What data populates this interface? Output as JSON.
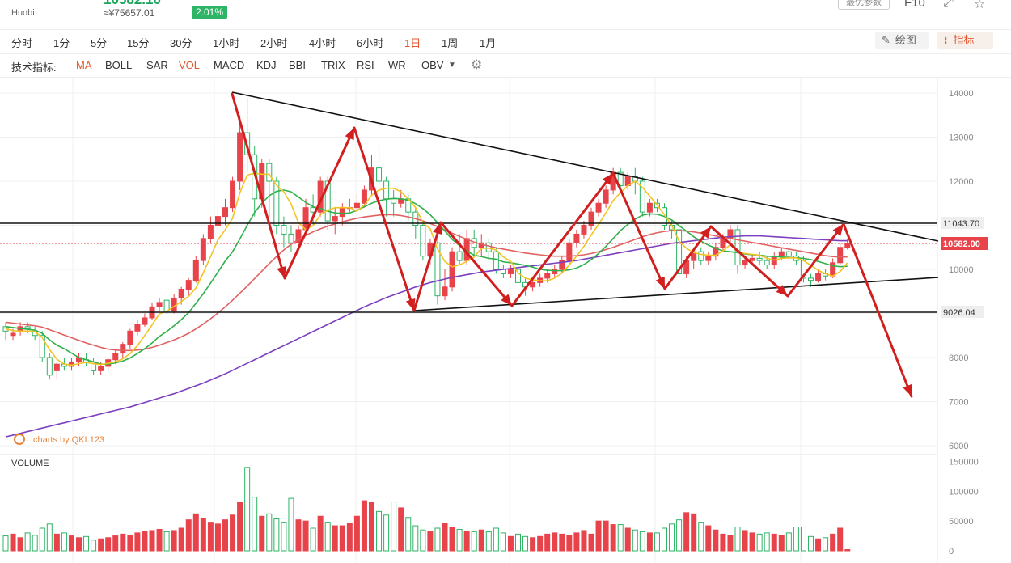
{
  "header": {
    "price_display": "10582.10",
    "exchange": "Huobi",
    "cny_price": "≈¥75657.01",
    "change_pct": "2.01%",
    "params_button": "最优参数",
    "f10": "F10"
  },
  "toolbar": {
    "timeframes": [
      "分时",
      "1分",
      "5分",
      "15分",
      "30分",
      "1小时",
      "2小时",
      "4小时",
      "6小时",
      "1日",
      "1周",
      "1月"
    ],
    "active_timeframe": "1日",
    "draw_button": "绘图",
    "indicator_button": "指标"
  },
  "indicators": {
    "label": "技术指标:",
    "items": [
      "MA",
      "BOLL",
      "SAR",
      "VOL",
      "MACD",
      "KDJ",
      "BBI",
      "TRIX",
      "RSI",
      "WR",
      "OBV"
    ],
    "active": [
      "MA",
      "VOL"
    ]
  },
  "price_axis": {
    "ticks": [
      "14000",
      "13000",
      "12000",
      "11000",
      "10000",
      "9000",
      "8000",
      "7000",
      "6000"
    ],
    "lines": {
      "resistance": "11043.70",
      "support": "9026.04",
      "current": "10582.00"
    }
  },
  "volume_axis": {
    "title": "VOLUME",
    "ticks": [
      "150000",
      "100000",
      "50000",
      "0"
    ]
  },
  "watermark": "charts by QKL123",
  "colors": {
    "up": "#e8434a",
    "down": "#2db464",
    "ma5": "#f3c322",
    "ma10": "#2fb04a",
    "ma20": "#e06262",
    "ma60": "#7b3fbf",
    "current_line": "#e8434a",
    "annotation": "#d11f1f"
  },
  "chart_data": {
    "type": "candlestick",
    "candles": [
      [
        8700,
        8600,
        8800,
        8400
      ],
      [
        8500,
        8550,
        8650,
        8400
      ],
      [
        8600,
        8700,
        8800,
        8500
      ],
      [
        8700,
        8650,
        8800,
        8550
      ],
      [
        8600,
        8500,
        8700,
        8400
      ],
      [
        8500,
        8000,
        8600,
        7900
      ],
      [
        8000,
        7600,
        8100,
        7500
      ],
      [
        7700,
        7850,
        7900,
        7500
      ],
      [
        7850,
        7800,
        8000,
        7700
      ],
      [
        7800,
        7900,
        8000,
        7700
      ],
      [
        7900,
        8000,
        8100,
        7800
      ],
      [
        7950,
        7900,
        8100,
        7800
      ],
      [
        7900,
        7700,
        8000,
        7600
      ],
      [
        7700,
        7800,
        7900,
        7600
      ],
      [
        7800,
        7950,
        8000,
        7700
      ],
      [
        7950,
        8100,
        8200,
        7850
      ],
      [
        8100,
        8300,
        8350,
        8000
      ],
      [
        8300,
        8600,
        8650,
        8200
      ],
      [
        8600,
        8750,
        8850,
        8500
      ],
      [
        8750,
        8900,
        9000,
        8700
      ],
      [
        8900,
        9150,
        9250,
        8850
      ],
      [
        9150,
        9250,
        9350,
        9050
      ],
      [
        9300,
        9050,
        9300,
        9000
      ],
      [
        9050,
        9350,
        9450,
        9000
      ],
      [
        9350,
        9550,
        9600,
        9200
      ],
      [
        9550,
        9750,
        9800,
        9400
      ],
      [
        9750,
        10200,
        10300,
        9700
      ],
      [
        10200,
        10700,
        10800,
        10100
      ],
      [
        10700,
        11000,
        11200,
        10600
      ],
      [
        11000,
        11200,
        11400,
        10800
      ],
      [
        11200,
        11400,
        11600,
        11000
      ],
      [
        11400,
        12000,
        12100,
        11300
      ],
      [
        12000,
        13100,
        13500,
        11800
      ],
      [
        13100,
        12600,
        13900,
        12200
      ],
      [
        12600,
        11600,
        12800,
        11200
      ],
      [
        11600,
        12400,
        12500,
        11400
      ],
      [
        12400,
        12000,
        12500,
        11200
      ],
      [
        12000,
        11000,
        12100,
        10800
      ],
      [
        11000,
        10800,
        11200,
        10500
      ],
      [
        10800,
        10600,
        11000,
        10400
      ],
      [
        10600,
        10900,
        11000,
        10400
      ],
      [
        10900,
        11400,
        11600,
        10800
      ],
      [
        11400,
        11300,
        11700,
        11000
      ],
      [
        11300,
        12000,
        12100,
        11200
      ],
      [
        12000,
        11100,
        12100,
        10900
      ],
      [
        11100,
        11200,
        11400,
        10800
      ],
      [
        11200,
        11400,
        11500,
        11000
      ],
      [
        11400,
        11400,
        11600,
        11300
      ],
      [
        11400,
        11500,
        11700,
        11300
      ],
      [
        11500,
        11800,
        11900,
        11400
      ],
      [
        11800,
        12300,
        12600,
        11700
      ],
      [
        12300,
        12000,
        12800,
        11900
      ],
      [
        12000,
        11600,
        12100,
        11200
      ],
      [
        11600,
        11500,
        11800,
        11200
      ],
      [
        11500,
        11600,
        11800,
        11400
      ],
      [
        11600,
        11300,
        11700,
        11100
      ],
      [
        11300,
        11000,
        11400,
        10700
      ],
      [
        11000,
        10300,
        11100,
        10200
      ],
      [
        10300,
        10600,
        10700,
        10100
      ],
      [
        10600,
        9400,
        10700,
        9200
      ],
      [
        9400,
        9600,
        10000,
        9300
      ],
      [
        9600,
        10400,
        10500,
        9500
      ],
      [
        10400,
        10200,
        10800,
        10100
      ],
      [
        10200,
        10700,
        10900,
        10100
      ],
      [
        10700,
        10500,
        10900,
        10300
      ],
      [
        10500,
        10600,
        10800,
        10300
      ],
      [
        10600,
        10400,
        10700,
        10200
      ],
      [
        10400,
        10000,
        10500,
        9900
      ],
      [
        10000,
        9900,
        10100,
        9800
      ],
      [
        9900,
        10000,
        10100,
        9800
      ],
      [
        10000,
        9700,
        10100,
        9600
      ],
      [
        9700,
        9600,
        9800,
        9400
      ],
      [
        9600,
        9700,
        9800,
        9500
      ],
      [
        9700,
        9800,
        9900,
        9600
      ],
      [
        9800,
        9900,
        10000,
        9700
      ],
      [
        9900,
        10000,
        10100,
        9800
      ],
      [
        10000,
        10200,
        10300,
        9900
      ],
      [
        10200,
        10600,
        10700,
        10100
      ],
      [
        10600,
        10800,
        10900,
        10500
      ],
      [
        10800,
        11000,
        11100,
        10700
      ],
      [
        11000,
        11300,
        11400,
        10900
      ],
      [
        11300,
        11500,
        11600,
        11200
      ],
      [
        11500,
        11800,
        11900,
        11400
      ],
      [
        11800,
        12200,
        12300,
        11700
      ],
      [
        12200,
        11900,
        12300,
        11800
      ],
      [
        11900,
        12100,
        12200,
        11800
      ],
      [
        12100,
        12000,
        12300,
        11700
      ],
      [
        12000,
        11300,
        12100,
        11200
      ],
      [
        11300,
        11500,
        11600,
        11200
      ],
      [
        11500,
        11400,
        11600,
        11300
      ],
      [
        11400,
        11000,
        11500,
        10900
      ],
      [
        11000,
        10900,
        11100,
        10700
      ],
      [
        10900,
        9900,
        11000,
        9800
      ],
      [
        9900,
        10200,
        10300,
        9800
      ],
      [
        10200,
        10400,
        10500,
        10000
      ],
      [
        10400,
        10200,
        10500,
        10100
      ],
      [
        10200,
        10300,
        10400,
        10100
      ],
      [
        10300,
        10500,
        10600,
        10200
      ],
      [
        10500,
        10700,
        10800,
        10400
      ],
      [
        10700,
        10900,
        11000,
        10600
      ],
      [
        10900,
        10100,
        11000,
        9900
      ],
      [
        10100,
        10200,
        10300,
        10000
      ],
      [
        10200,
        10250,
        10350,
        10100
      ],
      [
        10250,
        10200,
        10400,
        10100
      ],
      [
        10200,
        10100,
        10300,
        10000
      ],
      [
        10100,
        10300,
        10400,
        10000
      ],
      [
        10300,
        10400,
        10500,
        10200
      ],
      [
        10400,
        10300,
        10500,
        10200
      ],
      [
        10300,
        10200,
        10400,
        10100
      ],
      [
        10200,
        9800,
        10300,
        9700
      ],
      [
        9800,
        9750,
        9900,
        9600
      ],
      [
        9750,
        9900,
        10000,
        9700
      ],
      [
        9900,
        9850,
        10000,
        9750
      ],
      [
        9850,
        10150,
        10250,
        9800
      ],
      [
        10150,
        10500,
        10600,
        10100
      ],
      [
        10500,
        10582,
        10700,
        10450
      ]
    ],
    "ma5": [
      8650,
      8610,
      8600,
      8600,
      8590,
      8450,
      8180,
      7960,
      7850,
      7830,
      7860,
      7890,
      7860,
      7840,
      7870,
      7900,
      7970,
      8090,
      8270,
      8500,
      8740,
      8990,
      9050,
      9160,
      9270,
      9390,
      9580,
      9920,
      10290,
      10670,
      10900,
      11160,
      11740,
      12140,
      12180,
      12160,
      12160,
      11910,
      11760,
      11480,
      11060,
      10900,
      10990,
      11240,
      11340,
      11400,
      11400,
      11400,
      11320,
      11460,
      11680,
      11800,
      11840,
      11840,
      11760,
      11600,
      11400,
      11060,
      10920,
      10460,
      10180,
      10060,
      10100,
      10180,
      10280,
      10480,
      10480,
      10440,
      10280,
      10180,
      9920,
      9800,
      9760,
      9740,
      9740,
      9800,
      9920,
      10100,
      10300,
      10520,
      10780,
      11020,
      11280,
      11560,
      11740,
      11900,
      12000,
      11860,
      11660,
      11460,
      11240,
      11000,
      10640,
      10480,
      10380,
      10340,
      10320,
      10320,
      10420,
      10560,
      10400,
      10360,
      10340,
      10320,
      10250,
      10210,
      10250,
      10260,
      10260,
      10200,
      10090,
      9980,
      9900,
      9850,
      9950,
      10150
    ],
    "ma10": [
      8700,
      8680,
      8660,
      8640,
      8620,
      8550,
      8400,
      8280,
      8200,
      8100,
      8000,
      7950,
      7900,
      7850,
      7850,
      7880,
      7920,
      7990,
      8090,
      8200,
      8330,
      8480,
      8590,
      8720,
      8860,
      9020,
      9230,
      9450,
      9690,
      9940,
      10190,
      10400,
      10690,
      11000,
      11290,
      11500,
      11670,
      11770,
      11800,
      11760,
      11640,
      11520,
      11420,
      11380,
      11320,
      11280,
      11270,
      11280,
      11340,
      11420,
      11500,
      11560,
      11590,
      11610,
      11600,
      11570,
      11490,
      11380,
      11240,
      11060,
      10870,
      10680,
      10540,
      10420,
      10320,
      10290,
      10250,
      10230,
      10170,
      10150,
      10120,
      10090,
      10050,
      10000,
      9980,
      9970,
      9970,
      9990,
      10030,
      10110,
      10220,
      10360,
      10520,
      10700,
      10880,
      11020,
      11140,
      11230,
      11260,
      11250,
      11200,
      11120,
      10990,
      10870,
      10740,
      10640,
      10550,
      10480,
      10420,
      10400,
      10380,
      10350,
      10330,
      10320,
      10300,
      10290,
      10280,
      10270,
      10260,
      10250,
      10220,
      10180,
      10130,
      10080,
      10060,
      10070
    ],
    "ma20": [
      8800,
      8780,
      8760,
      8740,
      8720,
      8690,
      8630,
      8570,
      8510,
      8450,
      8390,
      8330,
      8280,
      8230,
      8190,
      8170,
      8160,
      8160,
      8170,
      8190,
      8230,
      8280,
      8340,
      8400,
      8470,
      8550,
      8650,
      8760,
      8880,
      9010,
      9150,
      9300,
      9460,
      9620,
      9790,
      9960,
      10130,
      10290,
      10440,
      10570,
      10680,
      10770,
      10850,
      10920,
      10980,
      11030,
      11080,
      11120,
      11160,
      11190,
      11210,
      11230,
      11240,
      11240,
      11220,
      11190,
      11150,
      11100,
      11040,
      10970,
      10890,
      10820,
      10750,
      10680,
      10620,
      10570,
      10530,
      10490,
      10460,
      10430,
      10400,
      10370,
      10350,
      10330,
      10310,
      10300,
      10300,
      10300,
      10310,
      10330,
      10360,
      10400,
      10450,
      10500,
      10560,
      10620,
      10680,
      10740,
      10790,
      10830,
      10860,
      10880,
      10880,
      10870,
      10850,
      10820,
      10790,
      10760,
      10730,
      10700,
      10670,
      10640,
      10610,
      10580,
      10550,
      10520,
      10490,
      10460,
      10430,
      10400,
      10370,
      10340,
      10310,
      10290,
      10280,
      10280
    ],
    "ma60": [
      6200,
      6240,
      6280,
      6320,
      6360,
      6400,
      6440,
      6480,
      6520,
      6560,
      6600,
      6640,
      6680,
      6720,
      6760,
      6800,
      6840,
      6880,
      6930,
      6980,
      7030,
      7080,
      7130,
      7180,
      7240,
      7300,
      7360,
      7420,
      7490,
      7560,
      7630,
      7710,
      7790,
      7870,
      7950,
      8030,
      8110,
      8190,
      8270,
      8350,
      8430,
      8510,
      8590,
      8670,
      8750,
      8830,
      8910,
      8990,
      9070,
      9150,
      9220,
      9290,
      9360,
      9420,
      9480,
      9540,
      9600,
      9650,
      9700,
      9740,
      9780,
      9820,
      9850,
      9880,
      9910,
      9940,
      9960,
      9980,
      10000,
      10020,
      10040,
      10060,
      10080,
      10100,
      10120,
      10140,
      10160,
      10180,
      10200,
      10230,
      10260,
      10290,
      10320,
      10350,
      10380,
      10410,
      10440,
      10470,
      10500,
      10530,
      10560,
      10590,
      10610,
      10630,
      10650,
      10670,
      10690,
      10710,
      10730,
      10740,
      10750,
      10760,
      10760,
      10760,
      10750,
      10740,
      10730,
      10720,
      10710,
      10700,
      10690,
      10680,
      10670,
      10660,
      10650,
      10650
    ],
    "volume": [
      25000,
      28000,
      22000,
      30000,
      26000,
      38000,
      45000,
      28000,
      30000,
      25000,
      22000,
      24000,
      18000,
      20000,
      22000,
      25000,
      28000,
      26000,
      30000,
      32000,
      34000,
      36000,
      32000,
      34000,
      38000,
      52000,
      62000,
      55000,
      48000,
      45000,
      52000,
      60000,
      82000,
      140000,
      90000,
      58000,
      62000,
      55000,
      48000,
      88000,
      52000,
      50000,
      38000,
      58000,
      48000,
      42000,
      42000,
      46000,
      58000,
      84000,
      82000,
      66000,
      60000,
      82000,
      72000,
      56000,
      42000,
      35000,
      33000,
      38000,
      46000,
      40000,
      36000,
      32000,
      32000,
      35000,
      32000,
      38000,
      30000,
      24000,
      28000,
      24000,
      22000,
      24000,
      28000,
      30000,
      28000,
      26000,
      30000,
      34000,
      28000,
      50000,
      50000,
      44000,
      44000,
      38000,
      35000,
      32000,
      30000,
      30000,
      38000,
      45000,
      52000,
      64000,
      62000,
      48000,
      42000,
      35000,
      28000,
      26000,
      40000,
      34000,
      30000,
      28000,
      30000,
      28000,
      26000,
      30000,
      40000,
      40000,
      24000,
      20000,
      22000,
      28000,
      38000,
      2000
    ]
  }
}
